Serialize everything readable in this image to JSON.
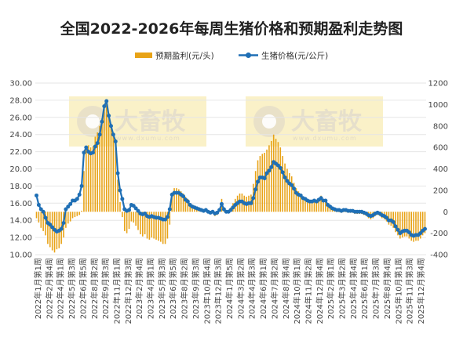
{
  "chart_data": {
    "type": "bar+line",
    "title": "全国2022-2026年每周生猪价格和预期盈利走势图",
    "legend": {
      "placement": "top",
      "items": [
        {
          "name": "预期盈利(元/头)",
          "kind": "bar",
          "color": "#E8A317"
        },
        {
          "name": "生猪价格(元/公斤)",
          "kind": "line",
          "color": "#1F6FB5"
        }
      ]
    },
    "y_left": {
      "min": 10,
      "max": 30,
      "step": 2,
      "ticks": [
        "10.00",
        "12.00",
        "14.00",
        "16.00",
        "18.00",
        "20.00",
        "22.00",
        "24.00",
        "26.00",
        "28.00",
        "30.00"
      ]
    },
    "y_right": {
      "min": -400,
      "max": 1200,
      "step": 200,
      "ticks": [
        "-400",
        "-200",
        "0",
        "200",
        "400",
        "600",
        "800",
        "1000",
        "1200"
      ]
    },
    "x_labels": [
      "2022年1月第1周",
      "2022年2月第4周",
      "2022年4月第1周",
      "2022年5月第3周",
      "2022年6月第5周",
      "2022年8月第2周",
      "2022年9月第3周",
      "2022年11月第1周",
      "2022年12月第3周",
      "2023年2月第4周",
      "2023年4月第1周",
      "2023年5月第3周",
      "2023年6月第5周",
      "2023年8月第2周",
      "2023年9月第3周",
      "2023年10月第4周",
      "2023年12月第3周",
      "2024年1月第5周",
      "2024年3月第2周",
      "2024年4月第3周",
      "2024年6月第1周",
      "2024年7月第2周",
      "2024年8月第4周",
      "2024年10月第1周",
      "2024年11月第2周",
      "2024年12月第4周",
      "2025年2月第1周",
      "2025年3月第2周",
      "2025年4月第4周",
      "2025年6月第1周",
      "2025年7月第3周",
      "2025年8月第4周",
      "2025年10月第1周",
      "2025年11月第3周",
      "2025年12月第4周"
    ],
    "series": [
      {
        "name": "生猪价格(元/公斤)",
        "axis": "left",
        "color": "#1F6FB5",
        "values": [
          16.9,
          15.8,
          15.3,
          15.0,
          14.3,
          13.7,
          13.5,
          13.2,
          12.9,
          12.7,
          12.8,
          13.0,
          13.7,
          15.3,
          15.6,
          15.9,
          16.3,
          16.3,
          16.5,
          17.0,
          18.0,
          21.9,
          22.5,
          22.0,
          21.8,
          21.9,
          22.6,
          23.0,
          24.0,
          25.5,
          27.3,
          27.9,
          26.2,
          25.0,
          24.0,
          23.2,
          19.5,
          17.5,
          16.5,
          15.3,
          15.1,
          15.2,
          15.8,
          15.7,
          15.4,
          15.1,
          14.8,
          14.7,
          14.8,
          14.5,
          14.4,
          14.5,
          14.4,
          14.3,
          14.3,
          14.2,
          14.1,
          14.1,
          14.4,
          15.3,
          17.0,
          17.2,
          17.2,
          17.2,
          17.0,
          16.8,
          16.4,
          16.2,
          15.8,
          15.6,
          15.5,
          15.4,
          15.3,
          15.2,
          15.1,
          15.2,
          15.0,
          14.9,
          15.0,
          14.8,
          14.9,
          15.2,
          15.9,
          15.3,
          15.0,
          15.0,
          15.2,
          15.5,
          15.8,
          16.0,
          16.2,
          16.2,
          16.0,
          15.9,
          16.0,
          16.0,
          16.6,
          17.6,
          18.5,
          19.0,
          19.0,
          18.9,
          19.5,
          19.8,
          20.2,
          20.8,
          20.6,
          20.4,
          20.1,
          19.6,
          19.0,
          18.6,
          18.3,
          18.1,
          17.7,
          17.2,
          17.0,
          16.9,
          16.6,
          16.5,
          16.3,
          16.2,
          16.2,
          16.3,
          16.2,
          16.4,
          16.6,
          16.3,
          16.3,
          15.8,
          15.6,
          15.4,
          15.3,
          15.2,
          15.2,
          15.1,
          15.2,
          15.2,
          15.1,
          15.1,
          15.1,
          15.0,
          15.0,
          15.0,
          15.0,
          14.9,
          14.8,
          14.6,
          14.5,
          14.6,
          14.8,
          14.9,
          14.8,
          14.6,
          14.5,
          14.3,
          14.0,
          14.0,
          13.8,
          13.3,
          12.9,
          12.5,
          12.7,
          12.8,
          12.8,
          12.6,
          12.3,
          12.2,
          12.3,
          12.3,
          12.5,
          12.8,
          13.0
        ]
      },
      {
        "name": "预期盈利(元/头)",
        "axis": "right",
        "color": "#E8A317",
        "values": [
          -60,
          -100,
          -150,
          -180,
          -220,
          -300,
          -330,
          -360,
          -380,
          -350,
          -340,
          -300,
          -240,
          -150,
          -110,
          -90,
          -60,
          -50,
          -40,
          -30,
          10,
          380,
          580,
          620,
          600,
          610,
          700,
          740,
          800,
          870,
          1000,
          1030,
          920,
          820,
          730,
          680,
          300,
          90,
          -50,
          -180,
          -200,
          -160,
          -90,
          -100,
          -130,
          -170,
          -210,
          -230,
          -210,
          -250,
          -260,
          -240,
          -250,
          -260,
          -270,
          -280,
          -300,
          -300,
          -250,
          -120,
          180,
          220,
          220,
          210,
          190,
          170,
          140,
          120,
          80,
          50,
          40,
          30,
          30,
          20,
          10,
          20,
          -10,
          -20,
          -10,
          -40,
          -30,
          10,
          120,
          40,
          10,
          10,
          40,
          80,
          120,
          150,
          170,
          170,
          150,
          140,
          150,
          160,
          260,
          380,
          480,
          520,
          540,
          550,
          580,
          620,
          660,
          720,
          680,
          650,
          600,
          520,
          450,
          400,
          360,
          330,
          270,
          220,
          190,
          170,
          140,
          130,
          110,
          100,
          100,
          110,
          100,
          120,
          150,
          110,
          110,
          60,
          40,
          20,
          10,
          0,
          0,
          -10,
          0,
          0,
          -10,
          -10,
          -10,
          -20,
          -20,
          -20,
          -20,
          -30,
          -40,
          -60,
          -70,
          -60,
          -40,
          -30,
          -40,
          -60,
          -70,
          -90,
          -120,
          -130,
          -150,
          -190,
          -220,
          -250,
          -240,
          -230,
          -230,
          -250,
          -270,
          -280,
          -270,
          -270,
          -250,
          -220,
          -200
        ]
      }
    ],
    "watermarks": [
      {
        "brand": "大畜牧",
        "domain": "www.dxumu.com"
      },
      {
        "brand": "大畜牧",
        "domain": "www.dxumu.com"
      }
    ]
  }
}
